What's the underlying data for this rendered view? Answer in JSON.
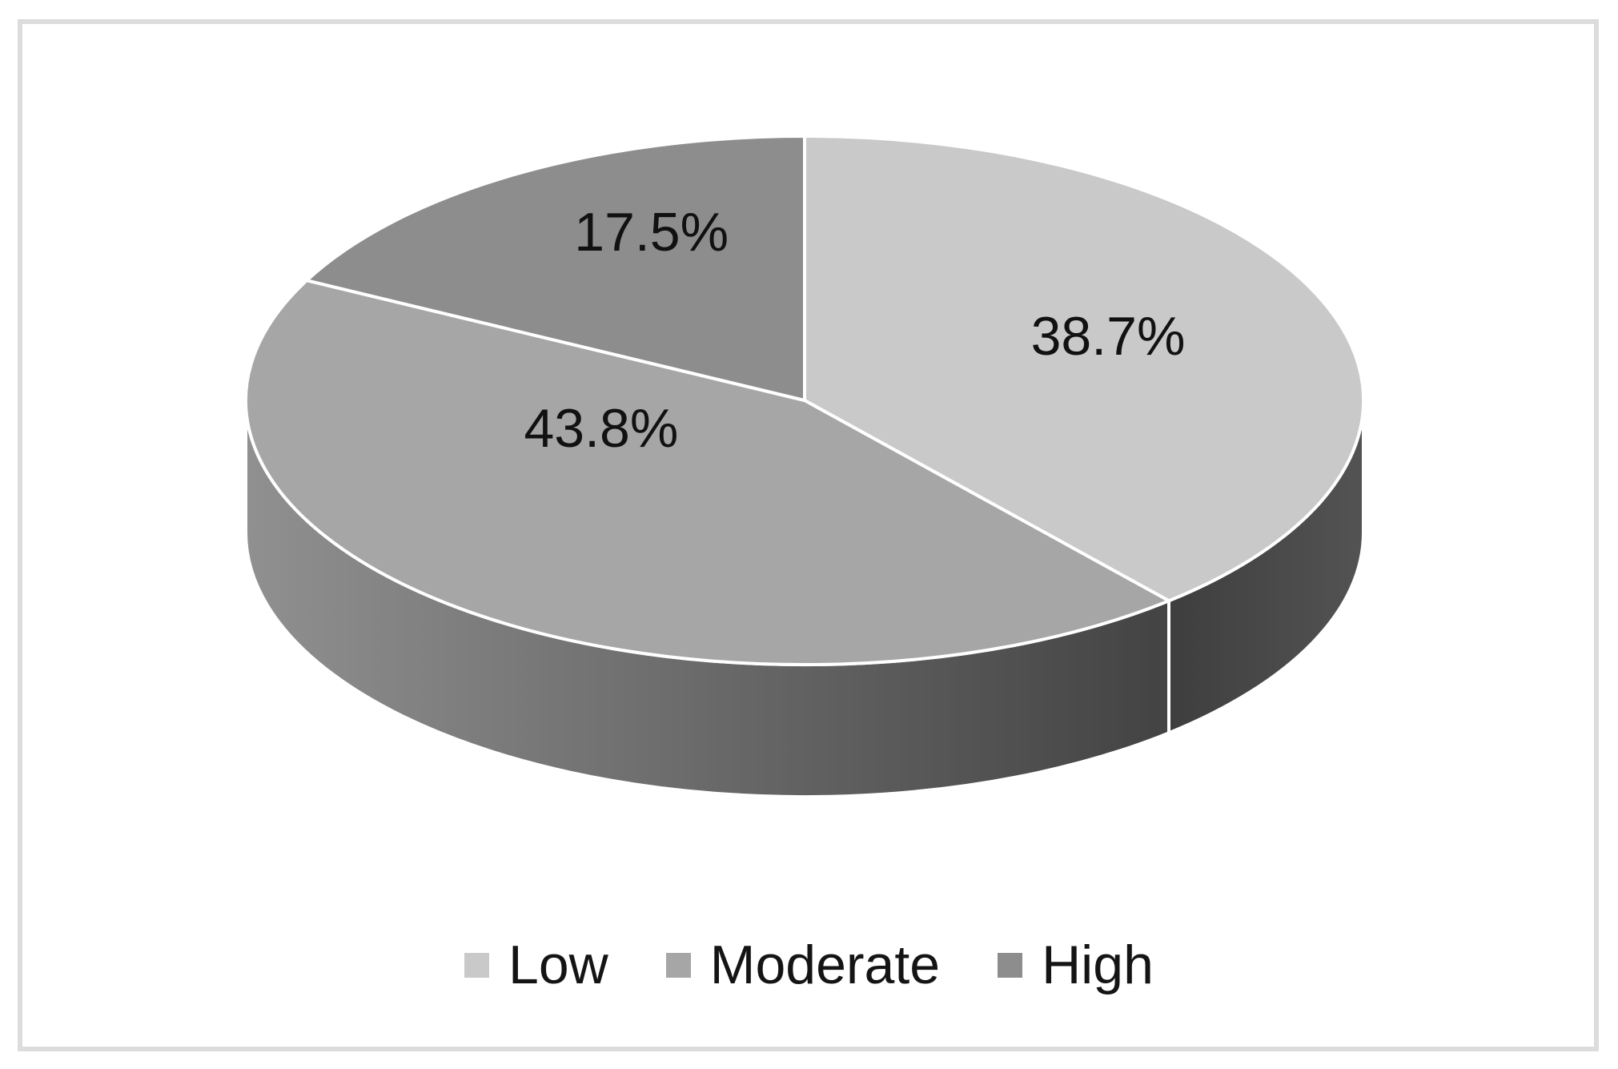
{
  "chart_data": {
    "type": "pie",
    "categories": [
      "Low",
      "Moderate",
      "High"
    ],
    "values": [
      38.7,
      43.8,
      17.5
    ],
    "labels": [
      "38.7%",
      "43.8%",
      "17.5%"
    ],
    "colors": [
      "#c9c9c9",
      "#a6a6a6",
      "#8d8d8d"
    ],
    "side_colors": [
      [
        "#3e3e3e",
        "#535353"
      ],
      [
        "#909090",
        "#434343"
      ],
      null
    ],
    "start_angle_deg": 90,
    "direction": "clockwise",
    "effect": "3d",
    "label_color": "#111111",
    "slice_border_color": "#ffffff",
    "legend_position": "bottom",
    "frame_border_color": "#dcdcdc",
    "background_color": "#ffffff"
  }
}
